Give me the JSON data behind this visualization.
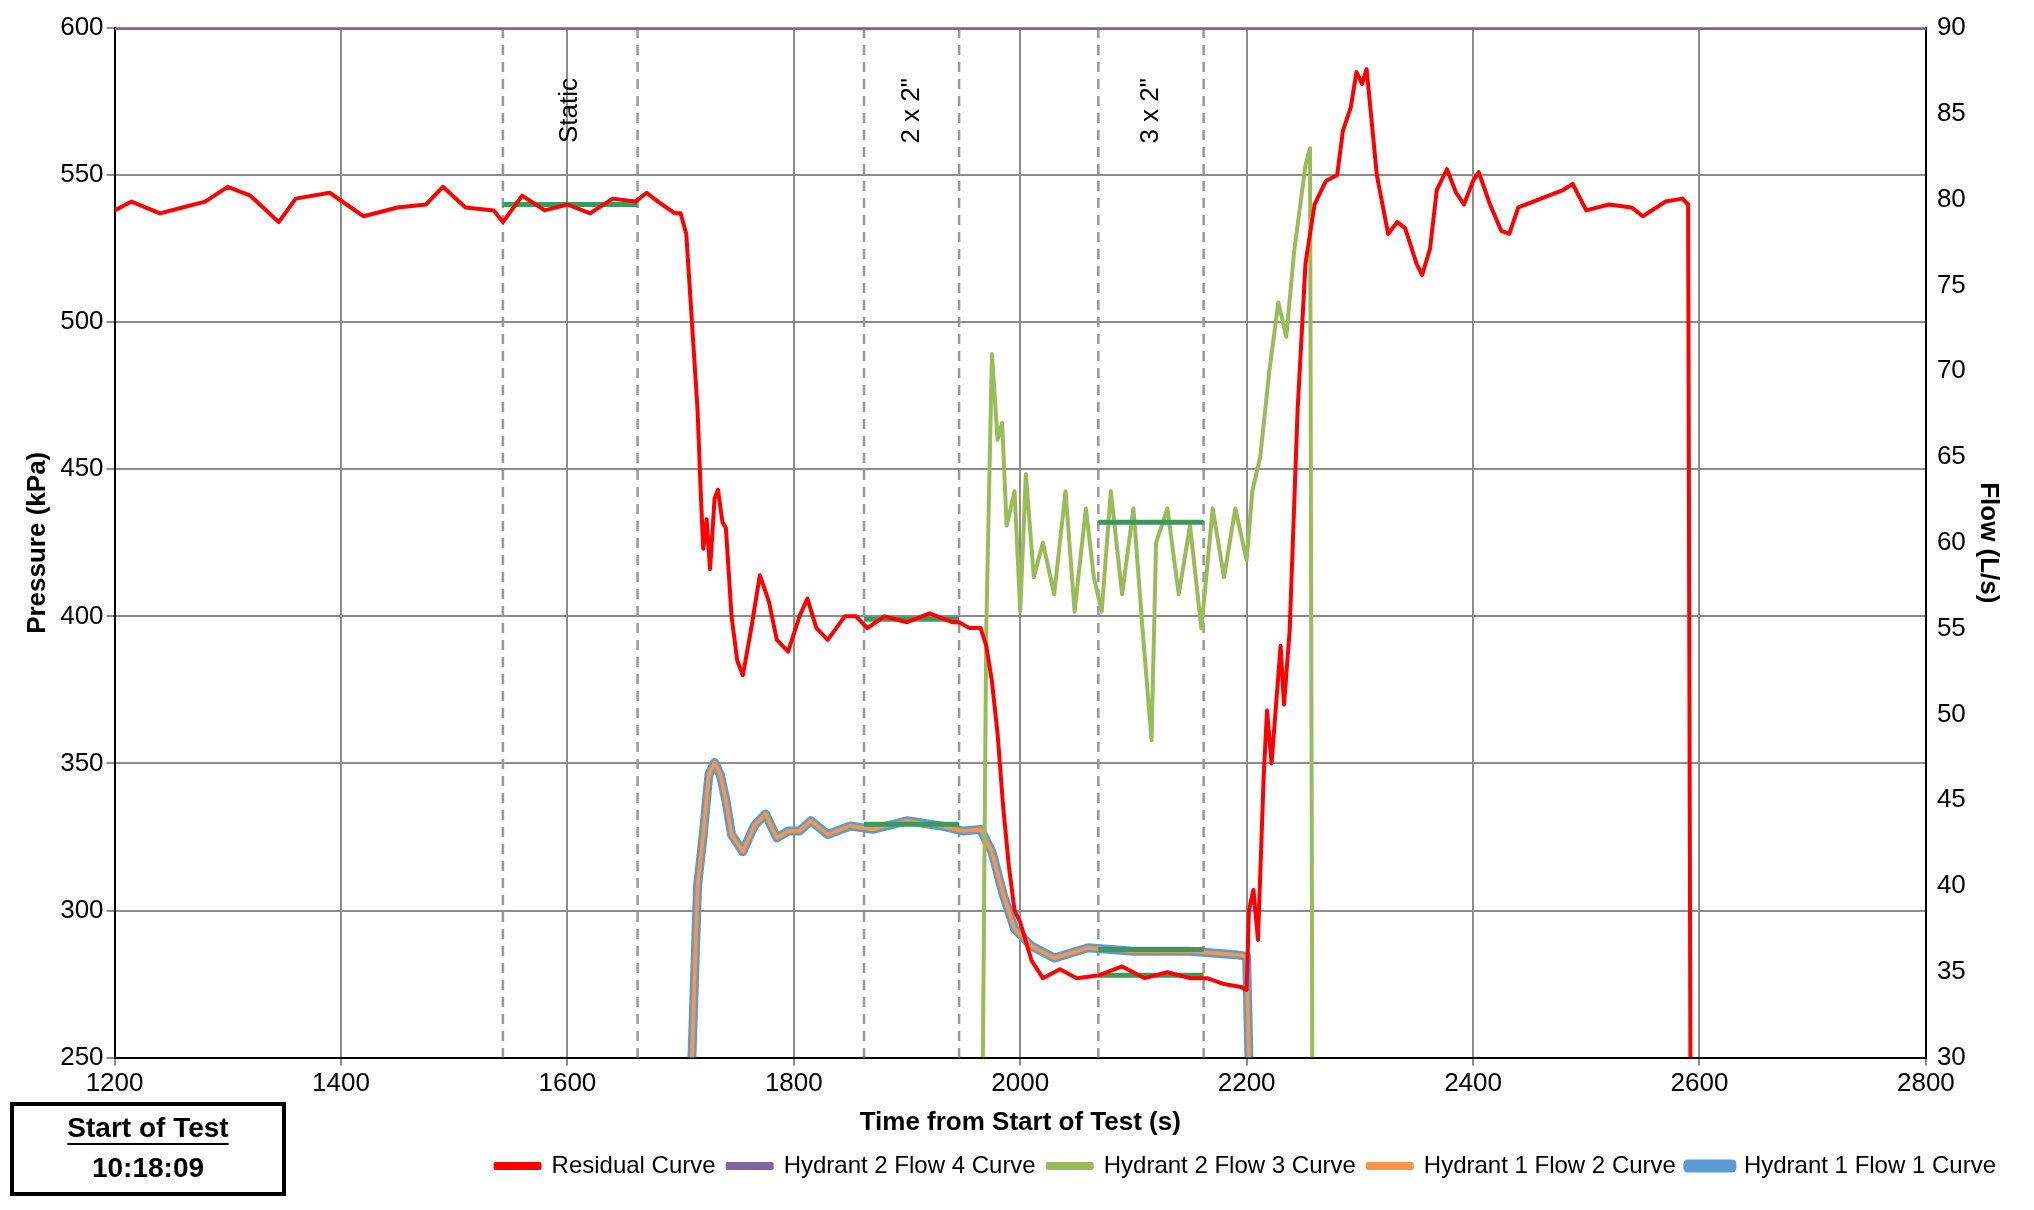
{
  "chart_data": {
    "type": "line",
    "xlabel": "Time from Start of Test (s)",
    "ylabel": "Pressure (kPa)",
    "y2label": "Flow (L/s)",
    "xlim": [
      1200,
      2800
    ],
    "xticks": [
      1200,
      1400,
      1600,
      1800,
      2000,
      2200,
      2400,
      2600,
      2800
    ],
    "ylim": [
      250,
      600
    ],
    "yticks": [
      250,
      300,
      350,
      400,
      450,
      500,
      550,
      600
    ],
    "y2lim": [
      30,
      90
    ],
    "y2ticks": [
      30,
      35,
      40,
      45,
      50,
      55,
      60,
      65,
      70,
      75,
      80,
      85,
      90
    ],
    "grid": true,
    "legend": "bottom",
    "marker": "none",
    "line_style": "solid",
    "series": [
      {
        "name": "Residual Curve",
        "color": "#ff0000",
        "x": [
          1200,
          1215,
          1240,
          1260,
          1280,
          1300,
          1320,
          1345,
          1360,
          1390,
          1420,
          1450,
          1475,
          1490,
          1510,
          1535,
          1543,
          1560,
          1580,
          1600,
          1620,
          1640,
          1660,
          1670,
          1680,
          1695,
          1700,
          1705,
          1710,
          1715,
          1718,
          1720,
          1723,
          1726,
          1730,
          1733,
          1737,
          1740,
          1745,
          1750,
          1755,
          1762,
          1770,
          1778,
          1785,
          1795,
          1805,
          1812,
          1820,
          1830,
          1845,
          1855,
          1865,
          1880,
          1900,
          1920,
          1940,
          1946,
          1955,
          1965,
          1970,
          1975,
          1980,
          1985,
          1990,
          1995,
          2000,
          2010,
          2020,
          2035,
          2050,
          2070,
          2090,
          2110,
          2130,
          2150,
          2165,
          2180,
          2195,
          2200,
          2202,
          2206,
          2210,
          2215,
          2218,
          2222,
          2225,
          2230,
          2233,
          2238,
          2245,
          2252,
          2260,
          2270,
          2280,
          2285,
          2292,
          2297,
          2302,
          2306,
          2315,
          2325,
          2333,
          2340,
          2350,
          2355,
          2362,
          2368,
          2377,
          2385,
          2392,
          2400,
          2405,
          2415,
          2425,
          2432,
          2440,
          2460,
          2480,
          2488,
          2500,
          2520,
          2540,
          2550,
          2570,
          2585,
          2590,
          2592
        ],
        "values": [
          538,
          541,
          537,
          539,
          541,
          546,
          543,
          534,
          542,
          544,
          536,
          539,
          540,
          546,
          539,
          538,
          534,
          543,
          538,
          540,
          537,
          542,
          541,
          544,
          541,
          537,
          537,
          530,
          500,
          470,
          440,
          423,
          433,
          416,
          440,
          443,
          432,
          430,
          400,
          385,
          380,
          395,
          414,
          405,
          392,
          388,
          400,
          406,
          396,
          392,
          400,
          400,
          396,
          400,
          398,
          401,
          398,
          398,
          396,
          396,
          390,
          378,
          360,
          335,
          315,
          300,
          296,
          283,
          277,
          280,
          277,
          278,
          281,
          277,
          279,
          277,
          277,
          275,
          274,
          273,
          300,
          307,
          290,
          345,
          368,
          350,
          365,
          390,
          370,
          395,
          470,
          520,
          540,
          548,
          550,
          565,
          573,
          585,
          581,
          586,
          550,
          530,
          534,
          532,
          520,
          516,
          525,
          545,
          552,
          544,
          540,
          548,
          551,
          540,
          531,
          530,
          539,
          542,
          545,
          547,
          538,
          540,
          539,
          536,
          541,
          542,
          540,
          250
        ]
      },
      {
        "name": "Hydrant 1 Flow 1 Curve",
        "color": "#5b9bd5",
        "axis": "y2",
        "x": [
          1710,
          1715,
          1720,
          1725,
          1730,
          1735,
          1740,
          1745,
          1755,
          1765,
          1775,
          1785,
          1795,
          1805,
          1815,
          1830,
          1850,
          1870,
          1900,
          1930,
          1950,
          1965,
          1975,
          1985,
          1995,
          2010,
          2030,
          2060,
          2100,
          2150,
          2190,
          2200,
          2202
        ],
        "values": [
          30,
          40,
          43,
          46.5,
          47.2,
          46.5,
          45,
          43,
          42,
          43.5,
          44.2,
          42.8,
          43.2,
          43.2,
          43.8,
          43,
          43.5,
          43.3,
          43.8,
          43.5,
          43.2,
          43.3,
          42,
          39.5,
          37.5,
          36.5,
          35.8,
          36.4,
          36.2,
          36.2,
          36,
          35.9,
          30
        ]
      },
      {
        "name": "Hydrant 1 Flow 2 Curve",
        "color": "#f79646",
        "axis": "y2",
        "x": [
          1710,
          1715,
          1720,
          1725,
          1730,
          1735,
          1740,
          1745,
          1755,
          1765,
          1775,
          1785,
          1795,
          1805,
          1815,
          1830,
          1850,
          1870,
          1900,
          1930,
          1950,
          1965,
          1975,
          1985,
          1995,
          2010,
          2030,
          2060,
          2100,
          2150,
          2190,
          2200,
          2202
        ],
        "values": [
          30,
          40,
          43,
          46.5,
          47.2,
          46.5,
          45,
          43,
          42,
          43.5,
          44.2,
          42.8,
          43.2,
          43.2,
          43.8,
          43,
          43.5,
          43.3,
          43.8,
          43.5,
          43.2,
          43.3,
          42,
          39.5,
          37.5,
          36.5,
          35.8,
          36.4,
          36.2,
          36.2,
          36,
          35.9,
          30
        ]
      },
      {
        "name": "Hydrant 2 Flow 3 Curve",
        "color": "#9bbb59",
        "axis": "y2",
        "x": [
          1967,
          1970,
          1975,
          1980,
          1984,
          1988,
          1995,
          2000,
          2005,
          2012,
          2020,
          2030,
          2040,
          2048,
          2058,
          2065,
          2072,
          2080,
          2090,
          2100,
          2108,
          2116,
          2120,
          2130,
          2140,
          2150,
          2160,
          2170,
          2180,
          2190,
          2200,
          2205,
          2212,
          2220,
          2228,
          2235,
          2242,
          2248,
          2252,
          2256,
          2258
        ],
        "values": [
          30,
          55,
          71,
          66,
          67,
          61,
          63,
          56,
          64,
          58,
          60,
          57,
          63,
          56,
          62,
          58,
          56,
          63,
          57,
          62,
          55,
          48.5,
          60,
          62,
          57,
          61,
          55,
          62,
          58,
          62,
          59,
          63,
          65,
          70,
          74,
          72,
          77,
          80,
          82,
          83,
          30
        ]
      },
      {
        "name": "Hydrant 2 Flow 4 Curve",
        "color": "#8064a2",
        "axis": "y2",
        "x": [
          1200,
          2800
        ],
        "values": [
          90,
          90
        ]
      },
      {
        "color": "#3a9a5b",
        "x": [
          1543,
          1662
        ],
        "values": [
          540,
          540
        ]
      },
      {
        "color": "#3a9a5b",
        "x": [
          1862,
          1946
        ],
        "values": [
          399,
          399
        ]
      },
      {
        "color": "#3a9a5b",
        "x": [
          2069,
          2162
        ],
        "values": [
          278,
          278
        ]
      },
      {
        "color": "#3a9a5b",
        "axis": "y2",
        "x": [
          1862,
          1946
        ],
        "values": [
          43.6,
          43.6
        ]
      },
      {
        "color": "#3a9a5b",
        "axis": "y2",
        "x": [
          2069,
          2162
        ],
        "values": [
          36.3,
          36.3
        ]
      },
      {
        "color": "#3a9a5b",
        "axis": "y2",
        "x": [
          2069,
          2162
        ],
        "values": [
          61.2,
          61.2
        ]
      }
    ],
    "ref_lines": [
      {
        "axis": "x",
        "value": 1543,
        "color": "#999999",
        "line_style": "dashed",
        "label": "Static"
      },
      {
        "axis": "x",
        "value": 1662,
        "color": "#999999",
        "line_style": "dashed"
      },
      {
        "axis": "x",
        "value": 1862,
        "color": "#999999",
        "line_style": "dashed",
        "label": "2 x 2\""
      },
      {
        "axis": "x",
        "value": 1946,
        "color": "#999999",
        "line_style": "dashed"
      },
      {
        "axis": "x",
        "value": 2069,
        "color": "#999999",
        "line_style": "dashed",
        "label": "3 x 2\""
      },
      {
        "axis": "x",
        "value": 2162,
        "color": "#999999",
        "line_style": "dashed"
      }
    ],
    "annotations": [
      "Start of Test",
      "10:18:09"
    ]
  }
}
